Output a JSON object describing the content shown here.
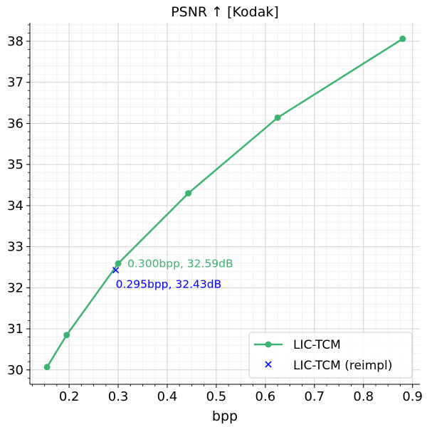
{
  "chart_data": {
    "type": "line",
    "title": "PSNR ↑  [Kodak]",
    "xlabel": "bpp",
    "ylabel": "",
    "xlim": [
      0.12,
      0.915
    ],
    "ylim": [
      29.65,
      38.45
    ],
    "x_ticks": [
      0.2,
      0.3,
      0.4,
      0.5,
      0.6,
      0.7,
      0.8,
      0.9
    ],
    "x_tick_labels": [
      "0.2",
      "0.3",
      "0.4",
      "0.5",
      "0.6",
      "0.7",
      "0.8",
      "0.9"
    ],
    "y_ticks": [
      30,
      31,
      32,
      33,
      34,
      35,
      36,
      37,
      38
    ],
    "y_tick_labels": [
      "30",
      "31",
      "32",
      "33",
      "34",
      "35",
      "36",
      "37",
      "38"
    ],
    "grid": true,
    "legend_position": "bottom-right",
    "series": [
      {
        "name": "LIC-TCM",
        "marker": "circle",
        "color": "#3cb371",
        "points": [
          {
            "x": 0.155,
            "y": 30.07
          },
          {
            "x": 0.195,
            "y": 30.85
          },
          {
            "x": 0.3,
            "y": 32.59
          },
          {
            "x": 0.443,
            "y": 34.3
          },
          {
            "x": 0.625,
            "y": 36.14
          },
          {
            "x": 0.88,
            "y": 38.06
          }
        ]
      },
      {
        "name": "LIC-TCM (reimpl)",
        "marker": "x",
        "color": "#0000ff",
        "points": [
          {
            "x": 0.295,
            "y": 32.43
          }
        ]
      }
    ],
    "annotations": [
      {
        "text": "0.300bpp, 32.59dB",
        "x": 0.3,
        "y": 32.59,
        "color": "#3cb371",
        "placement": "right"
      },
      {
        "text": "0.295bpp, 32.43dB",
        "x": 0.295,
        "y": 32.43,
        "color": "#0000ff",
        "placement": "below-right"
      }
    ]
  }
}
